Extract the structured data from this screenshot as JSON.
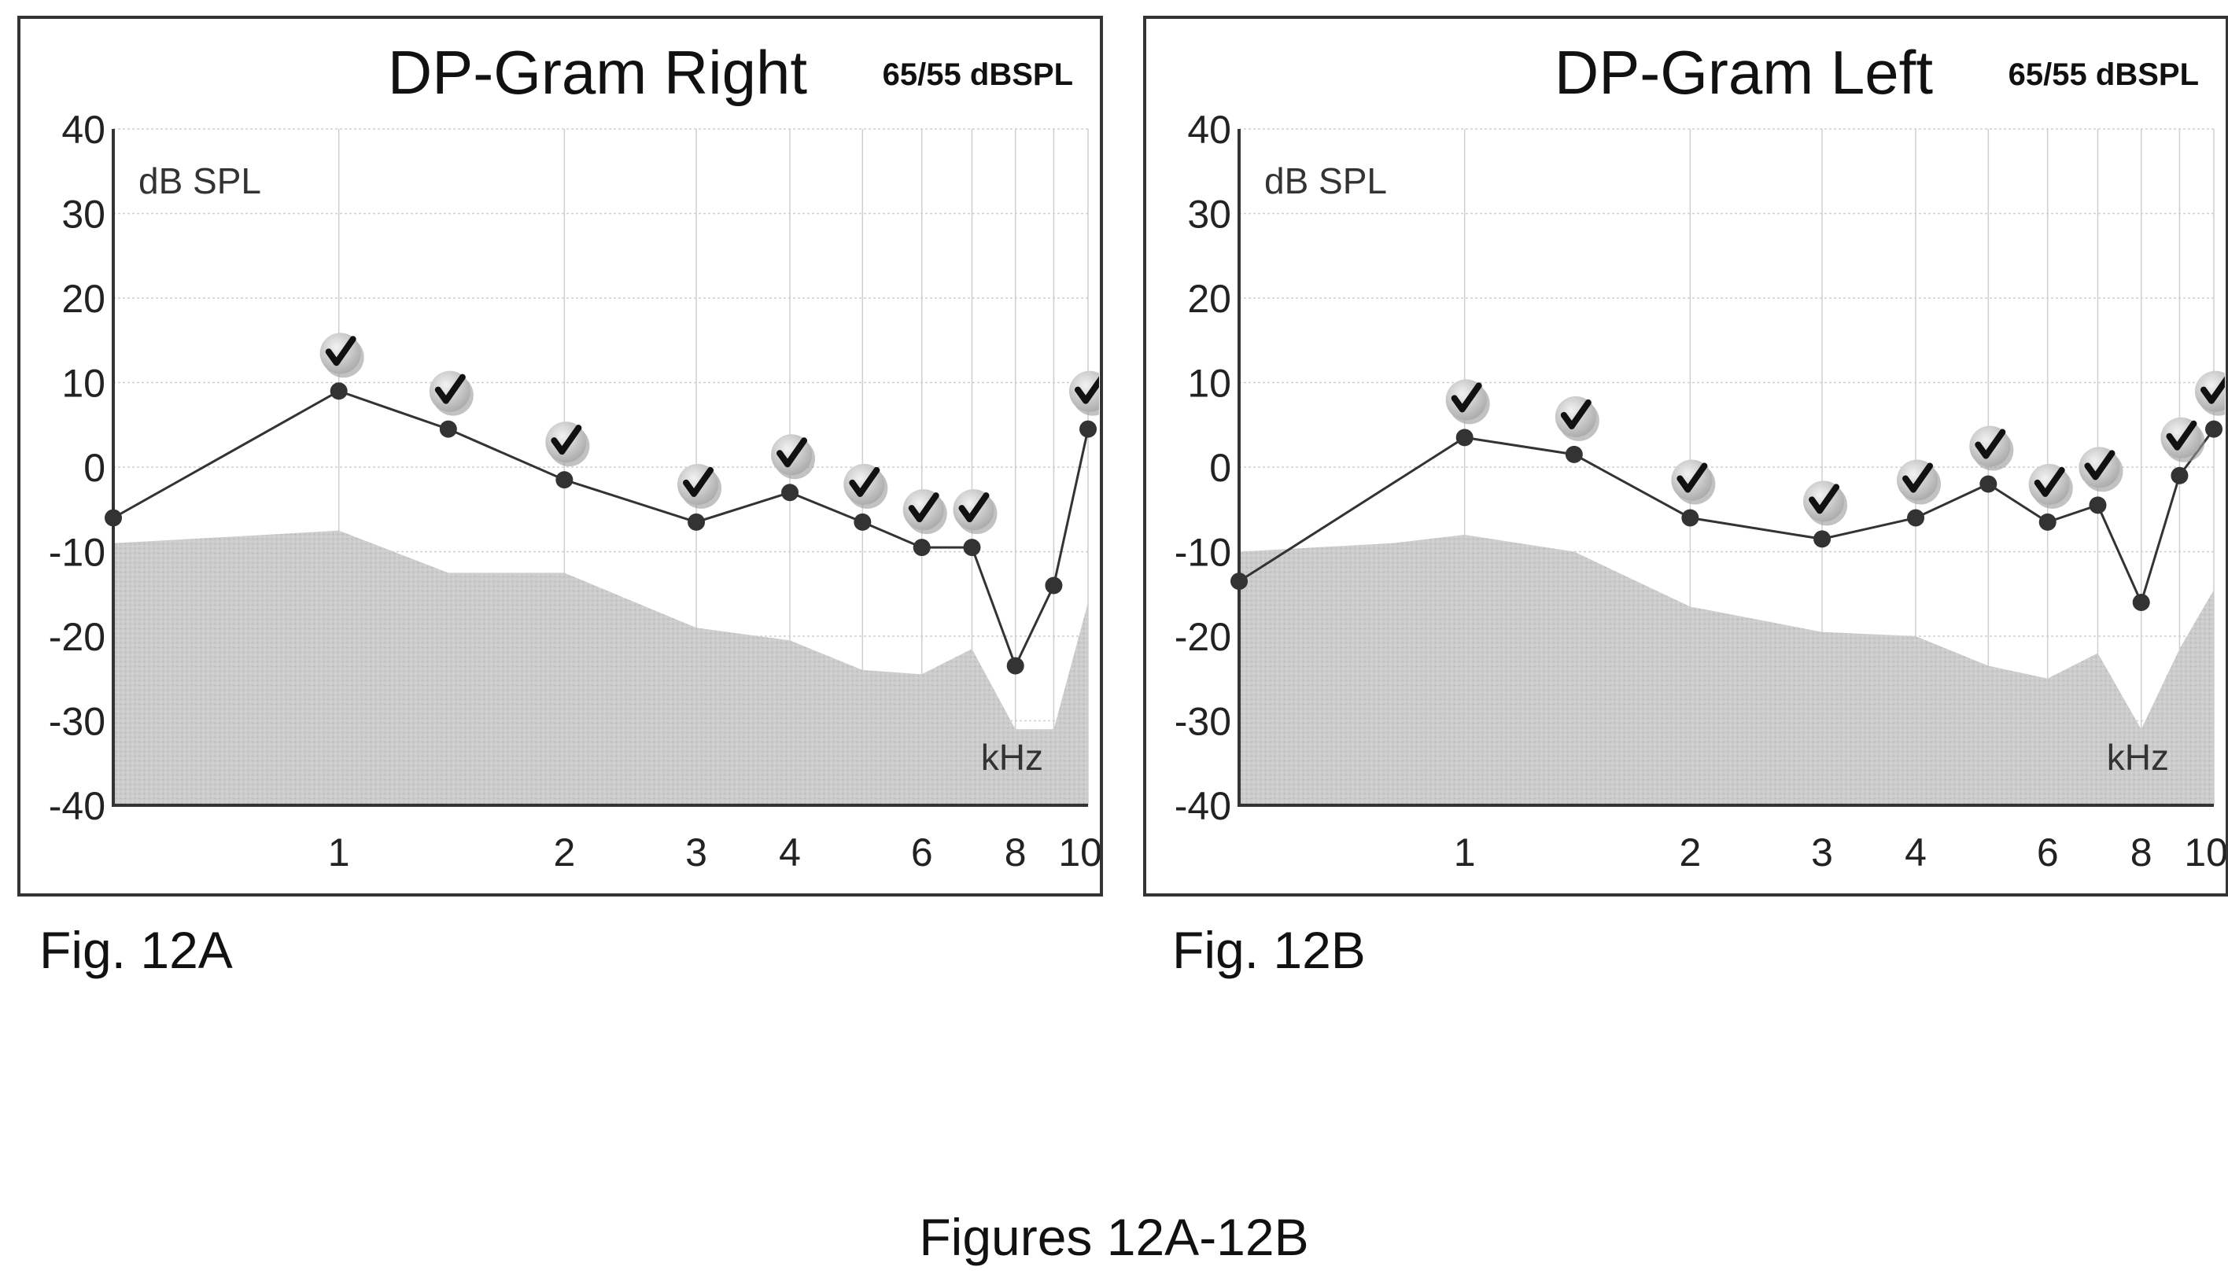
{
  "caption": "Figures 12A-12B",
  "chart_data": [
    {
      "type": "line",
      "title": "DP-Gram Right",
      "subtitle": "65/55 dBSPL",
      "figure_label": "Fig. 12A",
      "ylabel": "dB SPL",
      "xlabel": "kHz",
      "x_scale": "log",
      "xlim": [
        0.5,
        10
      ],
      "ylim": [
        -40,
        40
      ],
      "y_ticks": [
        40,
        30,
        20,
        10,
        0,
        -10,
        -20,
        -30,
        -40
      ],
      "x_ticks": [
        1,
        2,
        3,
        4,
        6,
        8,
        10
      ],
      "x_tick_labels": [
        "1",
        "2",
        "3",
        "4",
        "6",
        "8",
        "10"
      ],
      "x_gridlines": [
        0.5,
        1,
        2,
        3,
        4,
        5,
        6,
        7,
        8,
        9,
        10
      ],
      "grid": true,
      "series": [
        {
          "x": [
            0.5,
            1.0,
            1.4,
            2.0,
            3.0,
            4.0,
            5.0,
            6.0,
            7.0,
            8.0,
            9.0,
            10.0
          ],
          "y": [
            -6,
            9,
            4.5,
            -1.5,
            -6.5,
            -3,
            -6.5,
            -9.5,
            -9.5,
            -23.5,
            -14,
            4.5
          ],
          "pass": [
            false,
            true,
            true,
            true,
            true,
            true,
            true,
            true,
            true,
            false,
            false,
            true
          ]
        }
      ],
      "noise_floor": {
        "x": [
          0.5,
          0.8,
          1.0,
          1.4,
          2.0,
          3.0,
          4.0,
          5.0,
          6.0,
          7.0,
          8.0,
          9.0,
          10.0
        ],
        "y": [
          -9,
          -8,
          -7.5,
          -12.5,
          -12.5,
          -19,
          -20.5,
          -24,
          -24.5,
          -21.5,
          -31,
          -31,
          -16
        ]
      },
      "colors": {
        "line": "#333333",
        "marker": "#333333",
        "noise_floor": "#cccccc",
        "grid": "#cfcfcf"
      }
    },
    {
      "type": "line",
      "title": "DP-Gram Left",
      "subtitle": "65/55 dBSPL",
      "figure_label": "Fig. 12B",
      "ylabel": "dB SPL",
      "xlabel": "kHz",
      "x_scale": "log",
      "xlim": [
        0.5,
        10
      ],
      "ylim": [
        -40,
        40
      ],
      "y_ticks": [
        40,
        30,
        20,
        10,
        0,
        -10,
        -20,
        -30,
        -40
      ],
      "x_ticks": [
        1,
        2,
        3,
        4,
        6,
        8,
        10
      ],
      "x_tick_labels": [
        "1",
        "2",
        "3",
        "4",
        "6",
        "8",
        "10"
      ],
      "x_gridlines": [
        0.5,
        1,
        2,
        3,
        4,
        5,
        6,
        7,
        8,
        9,
        10
      ],
      "grid": true,
      "series": [
        {
          "x": [
            0.5,
            1.0,
            1.4,
            2.0,
            3.0,
            4.0,
            5.0,
            6.0,
            7.0,
            8.0,
            9.0,
            10.0
          ],
          "y": [
            -13.5,
            3.5,
            1.5,
            -6,
            -8.5,
            -6,
            -2,
            -6.5,
            -4.5,
            -16,
            -1,
            4.5
          ],
          "pass": [
            false,
            true,
            true,
            true,
            true,
            true,
            true,
            true,
            true,
            false,
            true,
            true
          ]
        }
      ],
      "noise_floor": {
        "x": [
          0.5,
          0.8,
          1.0,
          1.4,
          2.0,
          3.0,
          4.0,
          5.0,
          6.0,
          7.0,
          8.0,
          9.0,
          10.0
        ],
        "y": [
          -10,
          -9,
          -8,
          -10,
          -16.5,
          -19.5,
          -20,
          -23.5,
          -25,
          -22,
          -31,
          -21.5,
          -14.5
        ]
      },
      "colors": {
        "line": "#333333",
        "marker": "#333333",
        "noise_floor": "#cccccc",
        "grid": "#cfcfcf"
      }
    }
  ]
}
